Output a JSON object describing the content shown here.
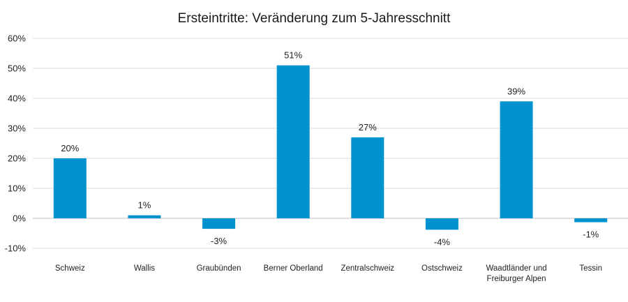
{
  "chart_data": {
    "type": "bar",
    "title": "Ersteintritte: Veränderung zum 5-Jahresschnitt",
    "categories": [
      [
        "Schweiz"
      ],
      [
        "Wallis"
      ],
      [
        "Graubünden"
      ],
      [
        "Berner Oberland"
      ],
      [
        "Zentralschweiz"
      ],
      [
        "Ostschweiz"
      ],
      [
        "Waadtländer und",
        "Freiburger Alpen"
      ],
      [
        "Tessin"
      ]
    ],
    "values": [
      20,
      1,
      -3.5,
      51,
      27,
      -3.8,
      39,
      -1.3
    ],
    "data_labels": [
      "20%",
      "1%",
      "-3%",
      "51%",
      "27%",
      "-4%",
      "39%",
      "-1%"
    ],
    "ylim": [
      -10,
      60
    ],
    "yticks": [
      60,
      50,
      40,
      30,
      20,
      10,
      0,
      -10
    ],
    "ytick_labels": [
      "60%",
      "50%",
      "40%",
      "30%",
      "20%",
      "10%",
      "0%",
      "-10%"
    ],
    "xlabel": "",
    "ylabel": "",
    "grid": true,
    "legend": "none",
    "colors": {
      "bar": "#0093cf",
      "grid": "#d9d9d9",
      "axis": "#bfbfbf"
    }
  }
}
